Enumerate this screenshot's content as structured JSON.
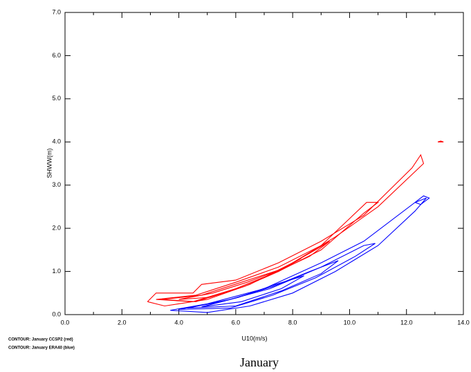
{
  "chart_data": {
    "type": "contour",
    "title": "January",
    "x_label": "U10(m/s)",
    "y_label": "SHWW(m)",
    "xlim": [
      0,
      14
    ],
    "ylim": [
      0,
      7
    ],
    "xticks": [
      {
        "value": 0,
        "label": "0.0"
      },
      {
        "value": 2,
        "label": "2.0"
      },
      {
        "value": 4,
        "label": "4.0"
      },
      {
        "value": 6,
        "label": "6.0"
      },
      {
        "value": 8,
        "label": "8.0"
      },
      {
        "value": 10,
        "label": "10.0"
      },
      {
        "value": 12,
        "label": "12.0"
      },
      {
        "value": 14,
        "label": "14.0"
      }
    ],
    "xminorticks": [
      1,
      3,
      5,
      7,
      9,
      11,
      13
    ],
    "yticks": [
      {
        "value": 0,
        "label": "0.0"
      },
      {
        "value": 1,
        "label": "1.0"
      },
      {
        "value": 2,
        "label": "2.0"
      },
      {
        "value": 3,
        "label": "3.0"
      },
      {
        "value": 4,
        "label": "4.0"
      },
      {
        "value": 5,
        "label": "5.0"
      },
      {
        "value": 6,
        "label": "6.0"
      },
      {
        "value": 7,
        "label": "7.0"
      }
    ],
    "series": [
      {
        "name": "CONTOUR: January CCSP2 (red)",
        "color": "#ff0000",
        "contours": [
          {
            "x": [
              2.9,
              3.2,
              4.5,
              4.8,
              6.0,
              7.5,
              9.0,
              10.5,
              12.2,
              12.5,
              12.6,
              11.0,
              9.5,
              8.0,
              6.5,
              5.0,
              3.5,
              2.9
            ],
            "y": [
              0.3,
              0.5,
              0.5,
              0.7,
              0.8,
              1.2,
              1.7,
              2.3,
              3.4,
              3.7,
              3.5,
              2.5,
              1.8,
              1.2,
              0.7,
              0.35,
              0.2,
              0.3
            ]
          },
          {
            "x": [
              3.2,
              4.6,
              6.0,
              7.5,
              9.0,
              10.6,
              11.0,
              10.5,
              9.0,
              7.5,
              6.0,
              4.5,
              3.2
            ],
            "y": [
              0.35,
              0.45,
              0.75,
              1.1,
              1.6,
              2.6,
              2.6,
              2.35,
              1.5,
              1.0,
              0.6,
              0.3,
              0.35
            ]
          },
          {
            "x": [
              3.4,
              4.8,
              6.2,
              7.6,
              8.8,
              9.3,
              8.6,
              7.3,
              6.0,
              4.6,
              3.4
            ],
            "y": [
              0.35,
              0.45,
              0.75,
              1.05,
              1.5,
              1.7,
              1.35,
              0.95,
              0.6,
              0.3,
              0.35
            ]
          },
          {
            "x": [
              4.0,
              5.2,
              6.4,
              7.6,
              8.3,
              7.5,
              6.3,
              5.1,
              4.0
            ],
            "y": [
              0.35,
              0.5,
              0.75,
              1.05,
              1.3,
              1.0,
              0.65,
              0.4,
              0.35
            ]
          },
          {
            "x": [
              13.1,
              13.3,
              13.2,
              13.1
            ],
            "y": [
              4.0,
              4.0,
              4.02,
              4.0
            ]
          }
        ]
      },
      {
        "name": "CONTOUR: January ERA40 (blue)",
        "color": "#0000ff",
        "contours": [
          {
            "x": [
              3.7,
              5.0,
              7.0,
              9.0,
              10.5,
              12.3,
              12.7,
              12.3,
              11.0,
              9.5,
              8.0,
              6.5,
              5.0,
              3.7
            ],
            "y": [
              0.1,
              0.25,
              0.6,
              1.2,
              1.7,
              2.6,
              2.7,
              2.4,
              1.6,
              1.0,
              0.5,
              0.2,
              0.05,
              0.1
            ]
          },
          {
            "x": [
              4.0,
              5.5,
              7.2,
              9.0,
              10.5,
              10.9,
              10.2,
              8.8,
              7.3,
              5.8,
              4.0
            ],
            "y": [
              0.12,
              0.3,
              0.6,
              1.1,
              1.6,
              1.65,
              1.35,
              0.85,
              0.45,
              0.15,
              0.12
            ]
          },
          {
            "x": [
              4.3,
              5.8,
              7.3,
              8.6,
              9.6,
              9.0,
              7.6,
              6.0,
              4.3
            ],
            "y": [
              0.15,
              0.35,
              0.65,
              1.0,
              1.25,
              0.95,
              0.55,
              0.2,
              0.15
            ]
          },
          {
            "x": [
              4.8,
              6.1,
              7.4,
              8.4,
              7.6,
              6.2,
              4.8
            ],
            "y": [
              0.18,
              0.4,
              0.7,
              0.9,
              0.6,
              0.3,
              0.18
            ]
          },
          {
            "x": [
              12.3,
              12.6,
              12.8,
              12.5,
              12.3
            ],
            "y": [
              2.6,
              2.75,
              2.7,
              2.55,
              2.6
            ]
          }
        ]
      }
    ]
  }
}
